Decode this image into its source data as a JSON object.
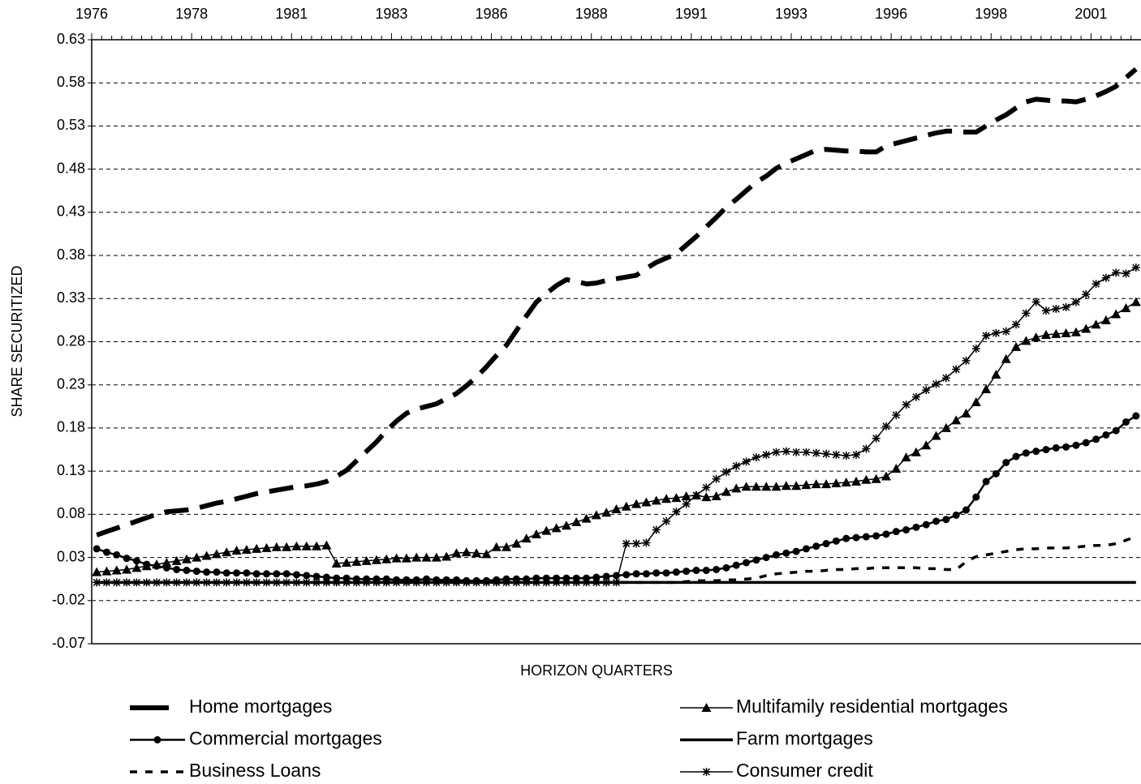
{
  "chart_data": {
    "type": "line",
    "x_label": "HORIZON QUARTERS",
    "y_label": "SHARE SECURITIZED",
    "categories": [
      "1976",
      null,
      null,
      null,
      null,
      null,
      null,
      null,
      null,
      null,
      "1978",
      null,
      null,
      null,
      null,
      null,
      null,
      null,
      null,
      null,
      "1981",
      null,
      null,
      null,
      null,
      null,
      null,
      null,
      null,
      null,
      "1983",
      null,
      null,
      null,
      null,
      null,
      null,
      null,
      null,
      null,
      "1986",
      null,
      null,
      null,
      null,
      null,
      null,
      null,
      null,
      null,
      "1988",
      null,
      null,
      null,
      null,
      null,
      null,
      null,
      null,
      null,
      "1991",
      null,
      null,
      null,
      null,
      null,
      null,
      null,
      null,
      null,
      "1993",
      null,
      null,
      null,
      null,
      null,
      null,
      null,
      null,
      null,
      "1996",
      null,
      null,
      null,
      null,
      null,
      null,
      null,
      null,
      null,
      "1998",
      null,
      null,
      null,
      null,
      null,
      null,
      null,
      null,
      null,
      "2001",
      null,
      null,
      null,
      null
    ],
    "ylim": [
      -0.07,
      0.63
    ],
    "yticks": [
      -0.07,
      -0.02,
      0.03,
      0.08,
      0.13,
      0.18,
      0.23,
      0.28,
      0.33,
      0.38,
      0.43,
      0.48,
      0.53,
      0.58,
      0.63
    ],
    "grid": true,
    "series": [
      {
        "name": "Home mortgages",
        "color": "#000000",
        "line_style": "dashed-thick",
        "marker": "none",
        "values": [
          0.056,
          0.06,
          0.064,
          0.068,
          0.072,
          0.076,
          0.08,
          0.083,
          0.084,
          0.085,
          0.087,
          0.09,
          0.093,
          0.095,
          0.098,
          0.101,
          0.104,
          0.106,
          0.108,
          0.11,
          0.112,
          0.113,
          0.115,
          0.118,
          0.124,
          0.131,
          0.142,
          0.153,
          0.164,
          0.177,
          0.188,
          0.197,
          0.202,
          0.205,
          0.208,
          0.214,
          0.22,
          0.229,
          0.239,
          0.251,
          0.264,
          0.276,
          0.293,
          0.31,
          0.326,
          0.336,
          0.345,
          0.352,
          0.35,
          0.347,
          0.348,
          0.351,
          0.353,
          0.355,
          0.357,
          0.365,
          0.372,
          0.377,
          0.382,
          0.392,
          0.402,
          0.413,
          0.424,
          0.436,
          0.445,
          0.455,
          0.465,
          0.472,
          0.481,
          0.487,
          0.492,
          0.497,
          0.502,
          0.503,
          0.502,
          0.501,
          0.501,
          0.5,
          0.5,
          0.507,
          0.51,
          0.513,
          0.516,
          0.519,
          0.522,
          0.524,
          0.524,
          0.523,
          0.523,
          0.53,
          0.537,
          0.543,
          0.551,
          0.558,
          0.561,
          0.56,
          0.559,
          0.559,
          0.558,
          0.561,
          0.565,
          0.57,
          0.576,
          0.586,
          0.596
        ]
      },
      {
        "name": "Multifamily residential mortgages",
        "color": "#000000",
        "line_style": "solid-thin",
        "marker": "triangle",
        "values": [
          0.013,
          0.014,
          0.015,
          0.016,
          0.018,
          0.02,
          0.022,
          0.024,
          0.026,
          0.028,
          0.03,
          0.032,
          0.034,
          0.036,
          0.038,
          0.039,
          0.04,
          0.041,
          0.042,
          0.042,
          0.043,
          0.043,
          0.043,
          0.044,
          0.023,
          0.024,
          0.025,
          0.026,
          0.027,
          0.028,
          0.029,
          0.029,
          0.03,
          0.03,
          0.03,
          0.031,
          0.035,
          0.036,
          0.035,
          0.034,
          0.042,
          0.042,
          0.046,
          0.052,
          0.057,
          0.061,
          0.064,
          0.067,
          0.071,
          0.075,
          0.079,
          0.082,
          0.086,
          0.089,
          0.092,
          0.094,
          0.096,
          0.098,
          0.099,
          0.101,
          0.102,
          0.1,
          0.101,
          0.106,
          0.11,
          0.112,
          0.112,
          0.112,
          0.112,
          0.113,
          0.113,
          0.114,
          0.115,
          0.115,
          0.116,
          0.117,
          0.118,
          0.12,
          0.121,
          0.124,
          0.133,
          0.146,
          0.152,
          0.16,
          0.171,
          0.18,
          0.189,
          0.197,
          0.21,
          0.225,
          0.242,
          0.26,
          0.274,
          0.281,
          0.285,
          0.288,
          0.289,
          0.29,
          0.291,
          0.295,
          0.3,
          0.305,
          0.312,
          0.319,
          0.326
        ]
      },
      {
        "name": "Commercial mortgages",
        "color": "#000000",
        "line_style": "solid-medium",
        "marker": "circle",
        "values": [
          0.04,
          0.036,
          0.033,
          0.029,
          0.026,
          0.022,
          0.02,
          0.018,
          0.016,
          0.015,
          0.014,
          0.013,
          0.013,
          0.012,
          0.012,
          0.012,
          0.011,
          0.011,
          0.011,
          0.011,
          0.01,
          0.009,
          0.008,
          0.007,
          0.006,
          0.006,
          0.005,
          0.005,
          0.005,
          0.005,
          0.004,
          0.004,
          0.004,
          0.005,
          0.004,
          0.004,
          0.004,
          0.003,
          0.003,
          0.003,
          0.004,
          0.005,
          0.005,
          0.005,
          0.006,
          0.006,
          0.006,
          0.006,
          0.006,
          0.006,
          0.007,
          0.008,
          0.009,
          0.01,
          0.011,
          0.011,
          0.012,
          0.012,
          0.013,
          0.014,
          0.015,
          0.015,
          0.016,
          0.018,
          0.021,
          0.024,
          0.027,
          0.03,
          0.033,
          0.035,
          0.037,
          0.04,
          0.043,
          0.046,
          0.049,
          0.052,
          0.053,
          0.054,
          0.055,
          0.057,
          0.06,
          0.062,
          0.065,
          0.068,
          0.072,
          0.074,
          0.079,
          0.085,
          0.1,
          0.118,
          0.127,
          0.14,
          0.147,
          0.151,
          0.153,
          0.155,
          0.157,
          0.158,
          0.16,
          0.163,
          0.167,
          0.172,
          0.177,
          0.187,
          0.194
        ]
      },
      {
        "name": "Farm mortgages",
        "color": "#000000",
        "line_style": "solid-thick",
        "marker": "none",
        "values": [
          0.001,
          0.001,
          0.001,
          0.001,
          0.001,
          0.001,
          0.001,
          0.001,
          0.001,
          0.001,
          0.001,
          0.001,
          0.001,
          0.001,
          0.001,
          0.001,
          0.001,
          0.001,
          0.001,
          0.001,
          0.001,
          0.001,
          0.001,
          0.001,
          0.001,
          0.001,
          0.001,
          0.001,
          0.001,
          0.001,
          0.001,
          0.001,
          0.001,
          0.001,
          0.001,
          0.001,
          0.001,
          0.001,
          0.001,
          0.001,
          0.001,
          0.001,
          0.001,
          0.001,
          0.001,
          0.001,
          0.001,
          0.001,
          0.001,
          0.001,
          0.001,
          0.001,
          0.001,
          0.001,
          0.001,
          0.001,
          0.001,
          0.001,
          0.001,
          0.001,
          0.001,
          0.001,
          0.001,
          0.001,
          0.001,
          0.001,
          0.001,
          0.001,
          0.001,
          0.001,
          0.001,
          0.001,
          0.001,
          0.001,
          0.001,
          0.001,
          0.001,
          0.001,
          0.001,
          0.001,
          0.001,
          0.001,
          0.001,
          0.001,
          0.001,
          0.001,
          0.001,
          0.001,
          0.001,
          0.001,
          0.001,
          0.001,
          0.001,
          0.001,
          0.001,
          0.001,
          0.001,
          0.001,
          0.001,
          0.001,
          0.001,
          0.001,
          0.001,
          0.001,
          0.001
        ]
      },
      {
        "name": "Business Loans",
        "color": "#000000",
        "line_style": "dashed-short",
        "marker": "none",
        "values": [
          0.001,
          0.001,
          0.001,
          0.001,
          0.001,
          0.001,
          0.001,
          0.001,
          0.001,
          0.001,
          0.001,
          0.001,
          0.001,
          0.001,
          0.001,
          0.001,
          0.001,
          0.001,
          0.001,
          0.001,
          0.001,
          0.001,
          0.001,
          0.001,
          0.001,
          0.001,
          0.001,
          0.001,
          0.001,
          0.001,
          0.001,
          0.001,
          0.001,
          0.001,
          0.001,
          0.001,
          0.001,
          0.001,
          0.001,
          0.001,
          0.001,
          0.001,
          0.001,
          0.001,
          0.001,
          0.001,
          0.001,
          0.001,
          0.001,
          0.001,
          0.001,
          0.001,
          0.001,
          0.001,
          0.001,
          0.001,
          0.001,
          0.001,
          0.001,
          0.002,
          0.003,
          0.003,
          0.003,
          0.004,
          0.004,
          0.005,
          0.006,
          0.009,
          0.011,
          0.012,
          0.013,
          0.014,
          0.014,
          0.015,
          0.016,
          0.016,
          0.017,
          0.017,
          0.018,
          0.018,
          0.018,
          0.018,
          0.018,
          0.017,
          0.017,
          0.016,
          0.016,
          0.025,
          0.031,
          0.033,
          0.035,
          0.037,
          0.039,
          0.04,
          0.04,
          0.041,
          0.041,
          0.041,
          0.042,
          0.043,
          0.044,
          0.044,
          0.046,
          0.05,
          0.054
        ]
      },
      {
        "name": "Consumer credit",
        "color": "#000000",
        "line_style": "solid-thin",
        "marker": "star",
        "values": [
          0.001,
          0.001,
          0.001,
          0.001,
          0.001,
          0.001,
          0.001,
          0.001,
          0.001,
          0.001,
          0.001,
          0.001,
          0.001,
          0.001,
          0.001,
          0.001,
          0.001,
          0.001,
          0.001,
          0.001,
          0.001,
          0.001,
          0.001,
          0.001,
          0.001,
          0.001,
          0.001,
          0.001,
          0.001,
          0.001,
          0.001,
          0.001,
          0.001,
          0.001,
          0.001,
          0.001,
          0.001,
          0.001,
          0.001,
          0.001,
          0.001,
          0.001,
          0.001,
          0.001,
          0.001,
          0.001,
          0.001,
          0.001,
          0.001,
          0.001,
          0.001,
          0.001,
          0.001,
          0.046,
          0.046,
          0.047,
          0.062,
          0.072,
          0.083,
          0.092,
          0.102,
          0.111,
          0.121,
          0.129,
          0.136,
          0.141,
          0.146,
          0.149,
          0.152,
          0.153,
          0.152,
          0.152,
          0.151,
          0.15,
          0.149,
          0.148,
          0.149,
          0.156,
          0.168,
          0.182,
          0.195,
          0.207,
          0.216,
          0.224,
          0.231,
          0.238,
          0.248,
          0.258,
          0.272,
          0.287,
          0.29,
          0.292,
          0.3,
          0.313,
          0.326,
          0.316,
          0.318,
          0.32,
          0.326,
          0.335,
          0.347,
          0.354,
          0.36,
          0.359,
          0.366
        ]
      }
    ]
  }
}
